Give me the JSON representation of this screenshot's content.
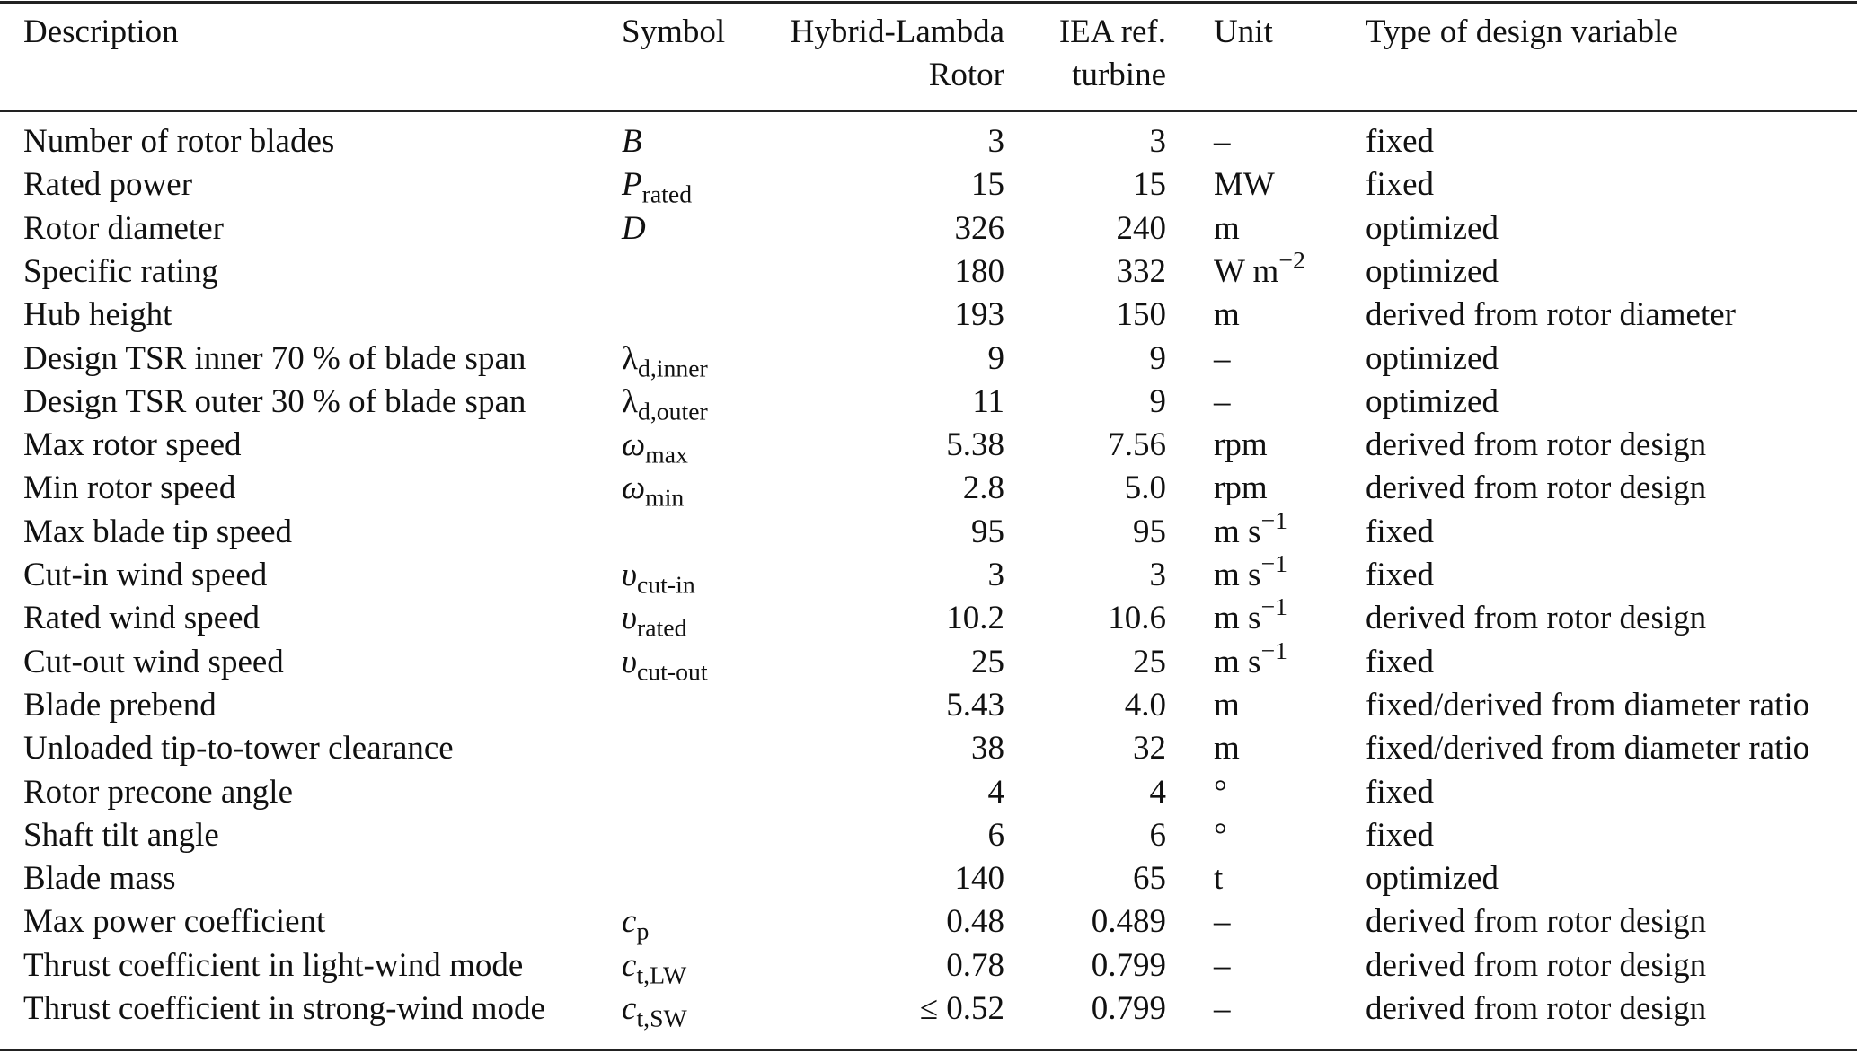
{
  "table": {
    "headers": {
      "description": "Description",
      "symbol": "Symbol",
      "hybrid": [
        "Hybrid-Lambda",
        "Rotor"
      ],
      "iea": [
        "IEA ref.",
        "turbine"
      ],
      "unit": "Unit",
      "type": "Type of design variable"
    },
    "rows": [
      {
        "description": "Number of rotor blades",
        "symbol": {
          "base": "B",
          "italic": true,
          "sub": ""
        },
        "hybrid": "3",
        "iea": "3",
        "unit": {
          "base": "–",
          "sup": ""
        },
        "type": "fixed"
      },
      {
        "description": "Rated power",
        "symbol": {
          "base": "P",
          "italic": true,
          "sub": "rated"
        },
        "hybrid": "15",
        "iea": "15",
        "unit": {
          "base": "MW",
          "sup": ""
        },
        "type": "fixed"
      },
      {
        "description": "Rotor diameter",
        "symbol": {
          "base": "D",
          "italic": true,
          "sub": ""
        },
        "hybrid": "326",
        "iea": "240",
        "unit": {
          "base": "m",
          "sup": ""
        },
        "type": "optimized"
      },
      {
        "description": "Specific rating",
        "symbol": {
          "base": "",
          "italic": false,
          "sub": ""
        },
        "hybrid": "180",
        "iea": "332",
        "unit": {
          "base": "W m",
          "sup": "−2"
        },
        "type": "optimized"
      },
      {
        "description": "Hub height",
        "symbol": {
          "base": "",
          "italic": false,
          "sub": ""
        },
        "hybrid": "193",
        "iea": "150",
        "unit": {
          "base": "m",
          "sup": ""
        },
        "type": "derived from rotor diameter"
      },
      {
        "description": "Design TSR inner 70 % of blade span",
        "symbol": {
          "base": "λ",
          "italic": false,
          "sub": "d,inner"
        },
        "hybrid": "9",
        "iea": "9",
        "unit": {
          "base": "–",
          "sup": ""
        },
        "type": "optimized"
      },
      {
        "description": "Design TSR outer 30 % of blade span",
        "symbol": {
          "base": "λ",
          "italic": false,
          "sub": "d,outer"
        },
        "hybrid": "11",
        "iea": "9",
        "unit": {
          "base": "–",
          "sup": ""
        },
        "type": "optimized"
      },
      {
        "description": "Max rotor speed",
        "symbol": {
          "base": "ω",
          "italic": true,
          "sub": "max"
        },
        "hybrid": "5.38",
        "iea": "7.56",
        "unit": {
          "base": "rpm",
          "sup": ""
        },
        "type": "derived from rotor design"
      },
      {
        "description": "Min rotor speed",
        "symbol": {
          "base": "ω",
          "italic": true,
          "sub": "min"
        },
        "hybrid": "2.8",
        "iea": "5.0",
        "unit": {
          "base": "rpm",
          "sup": ""
        },
        "type": "derived from rotor design"
      },
      {
        "description": "Max blade tip speed",
        "symbol": {
          "base": "",
          "italic": false,
          "sub": ""
        },
        "hybrid": "95",
        "iea": "95",
        "unit": {
          "base": "m s",
          "sup": "−1"
        },
        "type": "fixed"
      },
      {
        "description": "Cut-in wind speed",
        "symbol": {
          "base": "υ",
          "italic": true,
          "sub": "cut-in"
        },
        "hybrid": "3",
        "iea": "3",
        "unit": {
          "base": "m s",
          "sup": "−1"
        },
        "type": "fixed"
      },
      {
        "description": "Rated wind speed",
        "symbol": {
          "base": "υ",
          "italic": true,
          "sub": "rated"
        },
        "hybrid": "10.2",
        "iea": "10.6",
        "unit": {
          "base": "m s",
          "sup": "−1"
        },
        "type": "derived from rotor design"
      },
      {
        "description": "Cut-out wind speed",
        "symbol": {
          "base": "υ",
          "italic": true,
          "sub": "cut-out"
        },
        "hybrid": "25",
        "iea": "25",
        "unit": {
          "base": "m s",
          "sup": "−1"
        },
        "type": "fixed"
      },
      {
        "description": "Blade prebend",
        "symbol": {
          "base": "",
          "italic": false,
          "sub": ""
        },
        "hybrid": "5.43",
        "iea": "4.0",
        "unit": {
          "base": "m",
          "sup": ""
        },
        "type": "fixed/derived from diameter ratio"
      },
      {
        "description": "Unloaded tip-to-tower clearance",
        "symbol": {
          "base": "",
          "italic": false,
          "sub": ""
        },
        "hybrid": "38",
        "iea": "32",
        "unit": {
          "base": "m",
          "sup": ""
        },
        "type": "fixed/derived from diameter ratio"
      },
      {
        "description": "Rotor precone angle",
        "symbol": {
          "base": "",
          "italic": false,
          "sub": ""
        },
        "hybrid": "4",
        "iea": "4",
        "unit": {
          "base": "°",
          "sup": ""
        },
        "type": "fixed"
      },
      {
        "description": "Shaft tilt angle",
        "symbol": {
          "base": "",
          "italic": false,
          "sub": ""
        },
        "hybrid": "6",
        "iea": "6",
        "unit": {
          "base": "°",
          "sup": ""
        },
        "type": "fixed"
      },
      {
        "description": "Blade mass",
        "symbol": {
          "base": "",
          "italic": false,
          "sub": ""
        },
        "hybrid": "140",
        "iea": "65",
        "unit": {
          "base": "t",
          "sup": ""
        },
        "type": "optimized"
      },
      {
        "description": "Max power coefficient",
        "symbol": {
          "base": "c",
          "italic": true,
          "sub": "p"
        },
        "hybrid": "0.48",
        "iea": "0.489",
        "unit": {
          "base": "–",
          "sup": ""
        },
        "type": "derived from rotor design"
      },
      {
        "description": "Thrust coefficient in light-wind mode",
        "symbol": {
          "base": "c",
          "italic": true,
          "sub": "t,LW"
        },
        "hybrid": "0.78",
        "iea": "0.799",
        "unit": {
          "base": "–",
          "sup": ""
        },
        "type": "derived from rotor design"
      },
      {
        "description": "Thrust coefficient in strong-wind mode",
        "symbol": {
          "base": "c",
          "italic": true,
          "sub": "t,SW"
        },
        "hybrid": "≤ 0.52",
        "iea": "0.799",
        "unit": {
          "base": "–",
          "sup": ""
        },
        "type": "derived from rotor design"
      }
    ]
  }
}
